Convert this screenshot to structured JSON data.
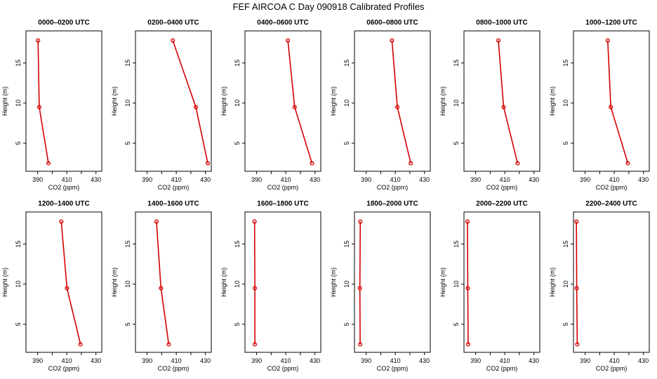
{
  "figure": {
    "title": "FEF AIRCOA C  Day 090918  Calibrated Profiles"
  },
  "style": {
    "line_color": "#d40000",
    "marker_color": "#d40000",
    "axis_color": "#000000"
  },
  "chart_data": [
    {
      "type": "line",
      "title": "0000–0200 UTC",
      "xlabel": "CO2 (ppm)",
      "ylabel": "Height (m)",
      "xlim": [
        382,
        434
      ],
      "ylim": [
        1.5,
        19.0
      ],
      "xticks": [
        390,
        410,
        430
      ],
      "yticks": [
        5,
        10,
        15
      ],
      "series": [
        {
          "x": [
            390.3,
            391.1,
            397.4
          ],
          "y": [
            17.8,
            9.5,
            2.5
          ]
        }
      ]
    },
    {
      "type": "line",
      "title": "0200–0400 UTC",
      "xlabel": "CO2 (ppm)",
      "ylabel": "Height (m)",
      "xlim": [
        382,
        434
      ],
      "ylim": [
        1.5,
        19.0
      ],
      "xticks": [
        390,
        410,
        430
      ],
      "yticks": [
        5,
        10,
        15
      ],
      "series": [
        {
          "x": [
            407.6,
            423.4,
            431.6
          ],
          "y": [
            17.8,
            9.5,
            2.5
          ]
        }
      ]
    },
    {
      "type": "line",
      "title": "0400–0600 UTC",
      "xlabel": "CO2 (ppm)",
      "ylabel": "Height (m)",
      "xlim": [
        382,
        434
      ],
      "ylim": [
        1.5,
        19.0
      ],
      "xticks": [
        390,
        410,
        430
      ],
      "yticks": [
        5,
        10,
        15
      ],
      "series": [
        {
          "x": [
            411.4,
            416.1,
            428.0
          ],
          "y": [
            17.8,
            9.5,
            2.5
          ]
        }
      ]
    },
    {
      "type": "line",
      "title": "0600–0800 UTC",
      "xlabel": "CO2 (ppm)",
      "ylabel": "Height (m)",
      "xlim": [
        382,
        434
      ],
      "ylim": [
        1.5,
        19.0
      ],
      "xticks": [
        390,
        410,
        430
      ],
      "yticks": [
        5,
        10,
        15
      ],
      "series": [
        {
          "x": [
            407.7,
            411.4,
            420.6
          ],
          "y": [
            17.8,
            9.5,
            2.5
          ]
        }
      ]
    },
    {
      "type": "line",
      "title": "0800–1000 UTC",
      "xlabel": "CO2 (ppm)",
      "ylabel": "Height (m)",
      "xlim": [
        382,
        434
      ],
      "ylim": [
        1.5,
        19.0
      ],
      "xticks": [
        390,
        410,
        430
      ],
      "yticks": [
        5,
        10,
        15
      ],
      "series": [
        {
          "x": [
            405.6,
            409.2,
            418.8
          ],
          "y": [
            17.8,
            9.5,
            2.5
          ]
        }
      ]
    },
    {
      "type": "line",
      "title": "1000–1200 UTC",
      "xlabel": "CO2 (ppm)",
      "ylabel": "Height (m)",
      "xlim": [
        382,
        434
      ],
      "ylim": [
        1.5,
        19.0
      ],
      "xticks": [
        390,
        410,
        430
      ],
      "yticks": [
        5,
        10,
        15
      ],
      "series": [
        {
          "x": [
            405.5,
            407.6,
            419.3
          ],
          "y": [
            17.8,
            9.5,
            2.5
          ]
        }
      ]
    },
    {
      "type": "line",
      "title": "1200–1400 UTC",
      "xlabel": "CO2 (ppm)",
      "ylabel": "Height (m)",
      "xlim": [
        382,
        434
      ],
      "ylim": [
        1.5,
        19.0
      ],
      "xticks": [
        390,
        410,
        430
      ],
      "yticks": [
        5,
        10,
        15
      ],
      "series": [
        {
          "x": [
            406.2,
            410.1,
            419.4
          ],
          "y": [
            17.8,
            9.5,
            2.5
          ]
        }
      ]
    },
    {
      "type": "line",
      "title": "1400–1600 UTC",
      "xlabel": "CO2 (ppm)",
      "ylabel": "Height (m)",
      "xlim": [
        382,
        434
      ],
      "ylim": [
        1.5,
        19.0
      ],
      "xticks": [
        390,
        410,
        430
      ],
      "yticks": [
        5,
        10,
        15
      ],
      "series": [
        {
          "x": [
            396.4,
            399.5,
            404.8
          ],
          "y": [
            17.8,
            9.5,
            2.5
          ]
        }
      ]
    },
    {
      "type": "line",
      "title": "1600–1800 UTC",
      "xlabel": "CO2 (ppm)",
      "ylabel": "Height (m)",
      "xlim": [
        382,
        434
      ],
      "ylim": [
        1.5,
        19.0
      ],
      "xticks": [
        390,
        410,
        430
      ],
      "yticks": [
        5,
        10,
        15
      ],
      "series": [
        {
          "x": [
            388.6,
            388.8,
            388.8
          ],
          "y": [
            17.8,
            9.5,
            2.5
          ]
        }
      ]
    },
    {
      "type": "line",
      "title": "1800–2000 UTC",
      "xlabel": "CO2 (ppm)",
      "ylabel": "Height (m)",
      "xlim": [
        382,
        434
      ],
      "ylim": [
        1.5,
        19.0
      ],
      "xticks": [
        390,
        410,
        430
      ],
      "yticks": [
        5,
        10,
        15
      ],
      "series": [
        {
          "x": [
            386.0,
            385.7,
            385.9
          ],
          "y": [
            17.8,
            9.5,
            2.5
          ]
        }
      ]
    },
    {
      "type": "line",
      "title": "2000–2200 UTC",
      "xlabel": "CO2 (ppm)",
      "ylabel": "Height (m)",
      "xlim": [
        382,
        434
      ],
      "ylim": [
        1.5,
        19.0
      ],
      "xticks": [
        390,
        410,
        430
      ],
      "yticks": [
        5,
        10,
        15
      ],
      "series": [
        {
          "x": [
            384.4,
            384.6,
            384.9
          ],
          "y": [
            17.8,
            9.5,
            2.5
          ]
        }
      ]
    },
    {
      "type": "line",
      "title": "2200–2400 UTC",
      "xlabel": "CO2 (ppm)",
      "ylabel": "Height (m)",
      "xlim": [
        382,
        434
      ],
      "ylim": [
        1.5,
        19.0
      ],
      "xticks": [
        390,
        410,
        430
      ],
      "yticks": [
        5,
        10,
        15
      ],
      "series": [
        {
          "x": [
            384.0,
            384.2,
            384.6
          ],
          "y": [
            17.8,
            9.5,
            2.5
          ]
        }
      ]
    }
  ]
}
